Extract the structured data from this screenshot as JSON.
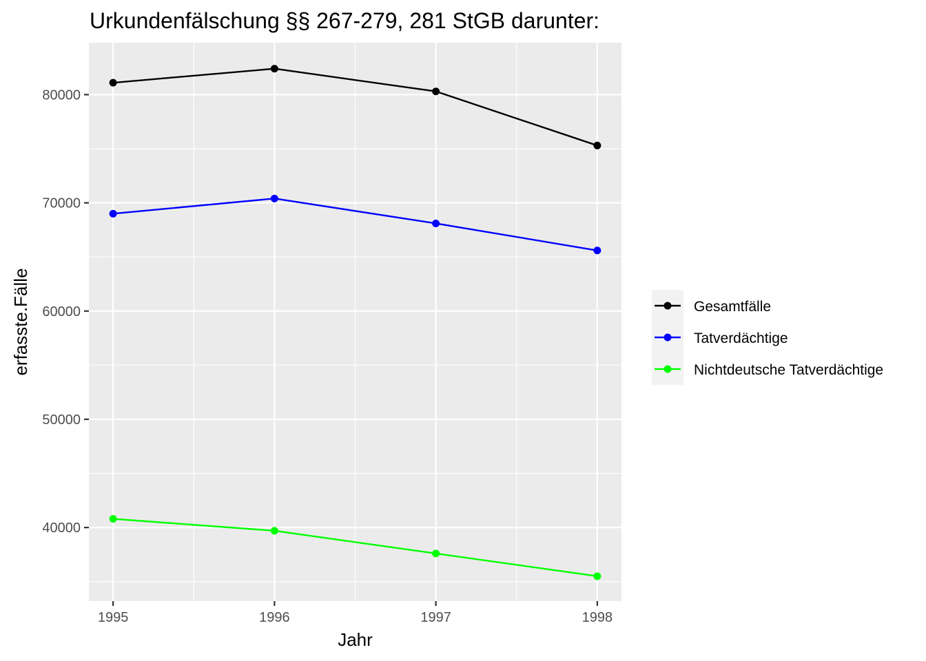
{
  "chart_data": {
    "type": "line",
    "title": "Urkundenfälschung §§ 267-279, 281 StGB darunter:",
    "xlabel": "Jahr",
    "ylabel": "erfasste.Fälle",
    "x": [
      1995,
      1996,
      1997,
      1998
    ],
    "x_ticks": [
      "1995",
      "1996",
      "1997",
      "1998"
    ],
    "xlim": [
      1994.85,
      1998.15
    ],
    "y_ticks": [
      40000,
      50000,
      60000,
      70000,
      80000
    ],
    "y_tick_labels": [
      "40000",
      "50000",
      "60000",
      "70000",
      "80000"
    ],
    "ylim": [
      33200,
      84800
    ],
    "grid": true,
    "legend_position": "right",
    "series": [
      {
        "name": "Gesamtfälle",
        "color": "#000000",
        "values": [
          81100,
          82400,
          80300,
          75300
        ]
      },
      {
        "name": "Tatverdächtige",
        "color": "#0000ff",
        "values": [
          69000,
          70400,
          68100,
          65600
        ]
      },
      {
        "name": "Nichtdeutsche Tatverdächtige",
        "color": "#00ff00",
        "values": [
          40800,
          39700,
          37600,
          35500
        ]
      }
    ]
  }
}
